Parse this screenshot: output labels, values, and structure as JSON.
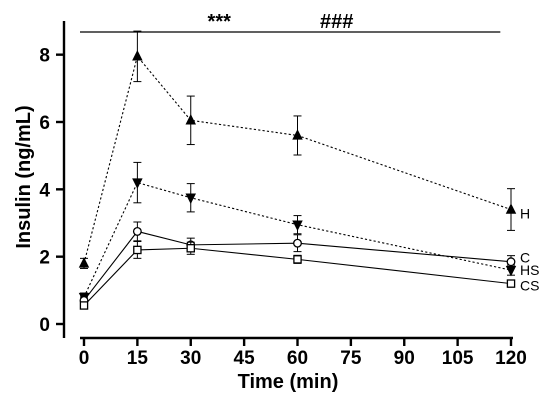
{
  "chart_data": {
    "type": "line",
    "title": "",
    "xlabel": "Time (min)",
    "ylabel": "Insulin (ng/mL)",
    "xlim": [
      0,
      120
    ],
    "ylim": [
      0,
      9
    ],
    "x_ticks": [
      0,
      15,
      30,
      45,
      60,
      75,
      90,
      105,
      120
    ],
    "y_ticks": [
      0,
      2,
      4,
      6,
      8
    ],
    "grid": false,
    "legend": "labels-at-line-end-right",
    "significance_bar": {
      "x_range": [
        0,
        117
      ],
      "y": 8.75,
      "labels": [
        {
          "text": "***",
          "x": 38
        },
        {
          "text": "###",
          "x": 71
        }
      ]
    },
    "series": [
      {
        "name": "H",
        "marker": "triangle-up",
        "line_style": "dotted",
        "color": "#000000",
        "x": [
          0,
          15,
          30,
          60,
          120
        ],
        "values": [
          1.8,
          7.95,
          6.05,
          5.6,
          3.4
        ],
        "errors": [
          0.15,
          0.75,
          0.72,
          0.58,
          0.62
        ]
      },
      {
        "name": "HS",
        "marker": "triangle-down",
        "line_style": "dotted",
        "color": "#000000",
        "x": [
          0,
          15,
          30,
          60,
          120
        ],
        "values": [
          0.8,
          4.2,
          3.75,
          2.95,
          1.6
        ],
        "errors": [
          0.12,
          0.6,
          0.42,
          0.27,
          0.15
        ]
      },
      {
        "name": "C",
        "marker": "circle-open",
        "line_style": "solid",
        "color": "#000000",
        "x": [
          0,
          15,
          30,
          60,
          120
        ],
        "values": [
          0.7,
          2.75,
          2.35,
          2.4,
          1.85
        ],
        "errors": [
          0.1,
          0.28,
          0.2,
          0.25,
          0.18
        ]
      },
      {
        "name": "CS",
        "marker": "square-open",
        "line_style": "solid",
        "color": "#000000",
        "x": [
          0,
          15,
          30,
          60,
          120
        ],
        "values": [
          0.55,
          2.2,
          2.25,
          1.92,
          1.2
        ],
        "errors": [
          0.08,
          0.25,
          0.18,
          0.12,
          0.1
        ]
      }
    ]
  }
}
